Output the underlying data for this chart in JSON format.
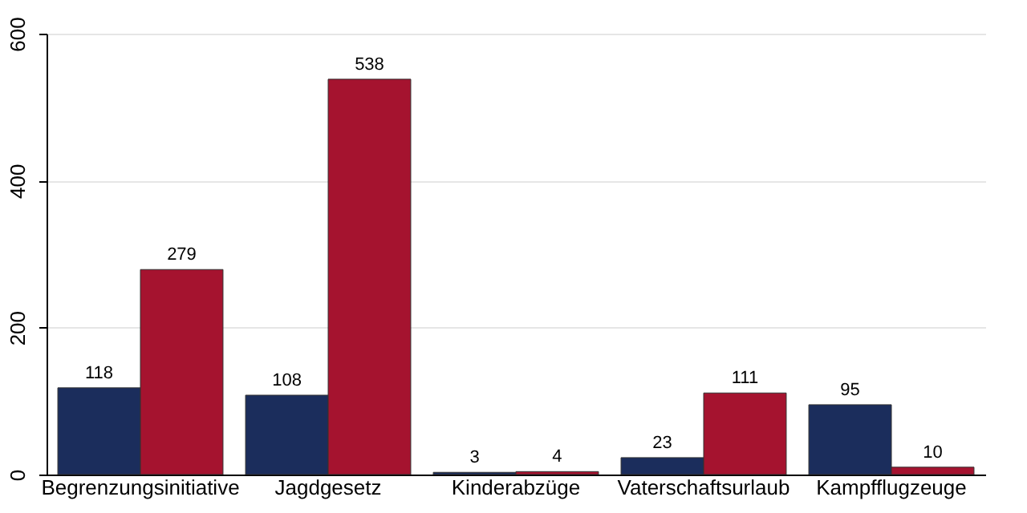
{
  "chart_data": {
    "type": "bar",
    "categories": [
      "Begrenzungsinitiative",
      "Jagdgesetz",
      "Kinderabzüge",
      "Vaterschaftsurlaub",
      "Kampfflugzeuge"
    ],
    "series": [
      {
        "color": "#1b2d5c",
        "values": [
          118,
          108,
          3,
          23,
          95
        ]
      },
      {
        "color": "#a5132f",
        "values": [
          279,
          538,
          4,
          111,
          10
        ]
      }
    ],
    "ylim": [
      0,
      600
    ],
    "yticks": [
      0,
      200,
      400,
      600
    ],
    "grid": "y",
    "data_labels": true
  }
}
